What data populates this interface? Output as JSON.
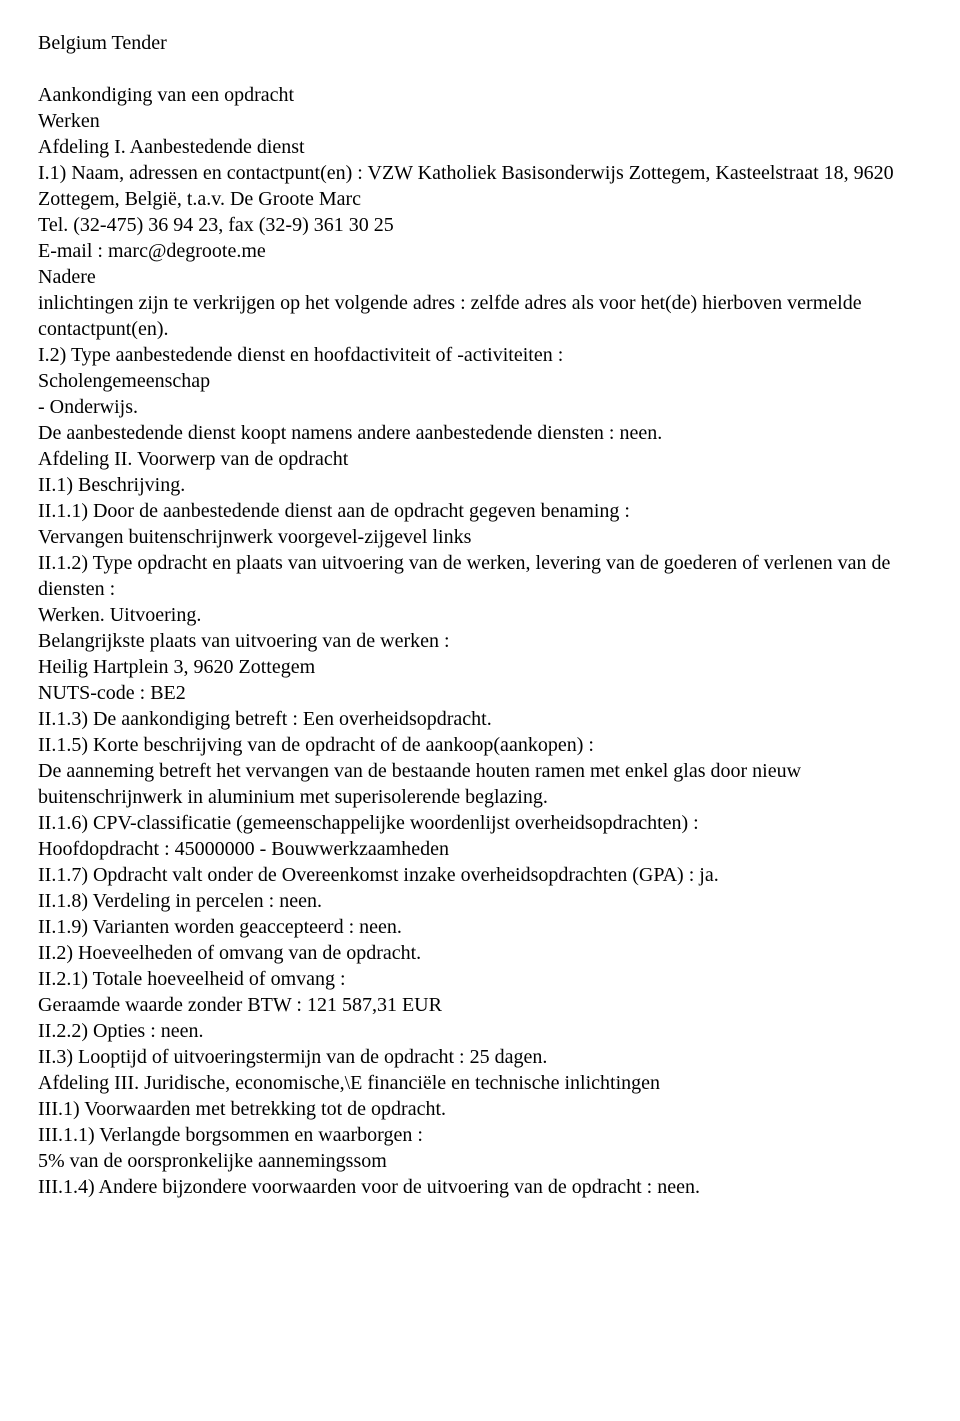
{
  "header": {
    "title": "Belgium Tender"
  },
  "body": {
    "lines": [
      "Aankondiging van een opdracht",
      "Werken",
      "Afdeling I. Aanbestedende dienst",
      "I.1) Naam, adressen en contactpunt(en) : VZW Katholiek Basisonderwijs Zottegem, Kasteelstraat 18, 9620 Zottegem, België, t.a.v. De Groote Marc",
      "Tel. (32-475) 36 94 23, fax (32-9) 361 30 25",
      "E-mail : marc@degroote.me",
      "Nadere",
      "inlichtingen zijn te verkrijgen op het volgende adres : zelfde adres als voor het(de) hierboven vermelde contactpunt(en).",
      "I.2) Type aanbestedende dienst en hoofdactiviteit of -activiteiten :",
      "Scholengemeenschap",
      "- Onderwijs.",
      "De aanbestedende dienst koopt namens andere aanbestedende diensten : neen.",
      "Afdeling II. Voorwerp van de opdracht",
      "II.1) Beschrijving.",
      "II.1.1) Door de aanbestedende dienst aan de opdracht gegeven benaming :",
      "Vervangen buitenschrijnwerk voorgevel-zijgevel links",
      "II.1.2) Type opdracht en plaats van uitvoering van de werken, levering van de goederen of verlenen van de diensten :",
      "Werken. Uitvoering.",
      "Belangrijkste plaats van uitvoering van de werken :",
      "Heilig Hartplein 3, 9620 Zottegem",
      "NUTS-code : BE2",
      "II.1.3) De aankondiging betreft : Een overheidsopdracht.",
      "II.1.5) Korte beschrijving van de opdracht of de aankoop(aankopen) :",
      "De aanneming betreft het vervangen van de bestaande houten ramen met enkel glas door nieuw buitenschrijnwerk in aluminium met superisolerende beglazing.",
      "II.1.6) CPV-classificatie (gemeenschappelijke woordenlijst overheidsopdrachten) :",
      "Hoofdopdracht : 45000000 - Bouwwerkzaamheden",
      "II.1.7) Opdracht valt onder de Overeenkomst inzake overheidsopdrachten (GPA) : ja.",
      "II.1.8) Verdeling in percelen : neen.",
      "II.1.9) Varianten worden geaccepteerd : neen.",
      "II.2) Hoeveelheden of omvang van de opdracht.",
      "II.2.1) Totale hoeveelheid of omvang :",
      "Geraamde waarde zonder BTW : 121 587,31 EUR",
      "II.2.2) Opties : neen.",
      "II.3) Looptijd of uitvoeringstermijn van de opdracht : 25 dagen.",
      "Afdeling III. Juridische, economische,\\E financiële en technische inlichtingen",
      "III.1) Voorwaarden met betrekking tot de opdracht.",
      "III.1.1) Verlangde borgsommen en waarborgen :",
      "5% van de oorspronkelijke aannemingssom",
      "III.1.4) Andere bijzondere voorwaarden voor de uitvoering van de opdracht : neen."
    ]
  }
}
